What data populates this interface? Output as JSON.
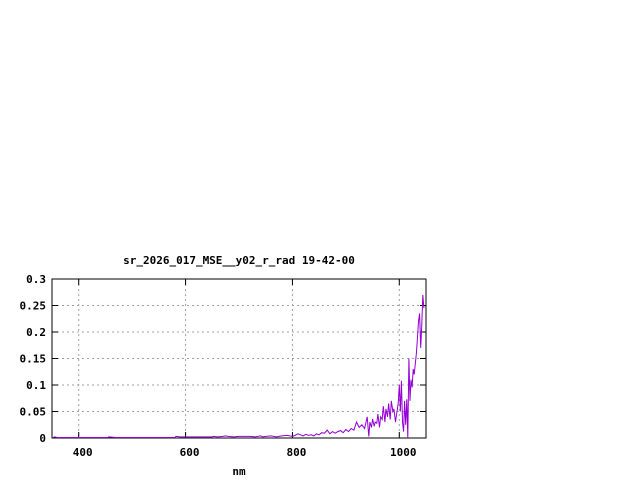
{
  "chart_data": {
    "type": "line",
    "title": "sr_2026_017_MSE__y02_r_rad 19-42-00",
    "xlabel": "nm",
    "ylabel": "",
    "xlim": [
      350,
      1050
    ],
    "ylim": [
      0,
      0.3
    ],
    "grid": true,
    "line_color": "#9400d3",
    "xticks": [
      400,
      600,
      800,
      1000
    ],
    "xtick_labels": [
      "400",
      "600",
      "800",
      "1000"
    ],
    "yticks": [
      0,
      0.05,
      0.1,
      0.15,
      0.2,
      0.25,
      0.3
    ],
    "ytick_labels": [
      "0",
      "0.05",
      "0.1",
      "0.15",
      "0.2",
      "0.25",
      "0.3"
    ],
    "series": [
      {
        "x": [
          352,
          355,
          360,
          380,
          400,
          420,
          440,
          455,
          456,
          470,
          500,
          520,
          540,
          560,
          580,
          582,
          590,
          600,
          620,
          640,
          650,
          652,
          660,
          670,
          675,
          680,
          690,
          700,
          710,
          720,
          730,
          740,
          745,
          750,
          760,
          770,
          780,
          790,
          800,
          805,
          810,
          815,
          820,
          825,
          830,
          835,
          840,
          845,
          850,
          855,
          860,
          865,
          870,
          875,
          880,
          885,
          890,
          895,
          900,
          905,
          910,
          915,
          920,
          925,
          930,
          935,
          940,
          943,
          945,
          948,
          950,
          953,
          955,
          958,
          960,
          963,
          965,
          968,
          970,
          973,
          975,
          978,
          980,
          983,
          985,
          988,
          990,
          993,
          995,
          998,
          1000,
          1002,
          1004,
          1006,
          1008,
          1010,
          1012,
          1014,
          1016,
          1018,
          1020,
          1022,
          1024,
          1026,
          1028,
          1030,
          1032,
          1034,
          1036,
          1038,
          1040,
          1042,
          1044,
          1046
        ],
        "y": [
          0.001,
          0.002,
          0.001,
          0.001,
          0.001,
          0.001,
          0.001,
          0.001,
          0.002,
          0.001,
          0.001,
          0.001,
          0.001,
          0.001,
          0.001,
          0.003,
          0.002,
          0.002,
          0.002,
          0.002,
          0.002,
          0.003,
          0.002,
          0.003,
          0.004,
          0.003,
          0.002,
          0.003,
          0.003,
          0.003,
          0.002,
          0.004,
          0.002,
          0.003,
          0.004,
          0.002,
          0.004,
          0.005,
          0.003,
          0.005,
          0.008,
          0.006,
          0.004,
          0.007,
          0.005,
          0.006,
          0.004,
          0.008,
          0.006,
          0.01,
          0.009,
          0.015,
          0.008,
          0.012,
          0.009,
          0.012,
          0.014,
          0.01,
          0.016,
          0.012,
          0.018,
          0.015,
          0.03,
          0.02,
          0.025,
          0.018,
          0.04,
          0.003,
          0.03,
          0.02,
          0.036,
          0.022,
          0.03,
          0.028,
          0.045,
          0.02,
          0.04,
          0.035,
          0.06,
          0.03,
          0.055,
          0.04,
          0.065,
          0.035,
          0.07,
          0.05,
          0.055,
          0.03,
          0.045,
          0.065,
          0.1,
          0.05,
          0.108,
          0.03,
          0.012,
          0.07,
          0.025,
          0.073,
          0.0,
          0.15,
          0.07,
          0.11,
          0.095,
          0.13,
          0.12,
          0.14,
          0.16,
          0.19,
          0.22,
          0.235,
          0.17,
          0.21,
          0.27,
          0.245
        ]
      }
    ]
  }
}
